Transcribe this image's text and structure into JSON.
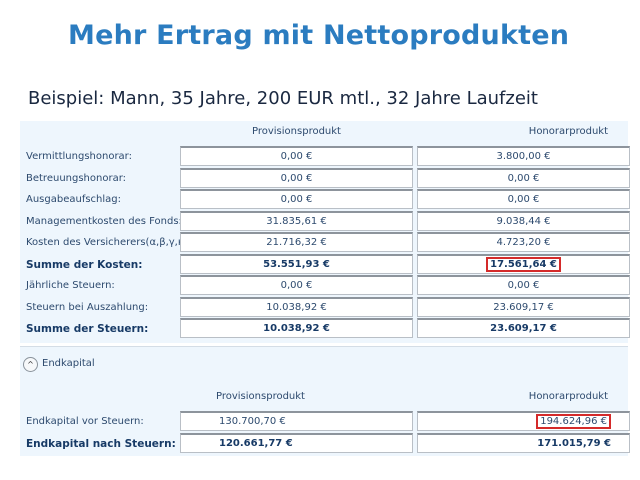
{
  "title": "Mehr Ertrag mit Nettoprodukten",
  "subtitle": "Beispiel: Mann, 35 Jahre, 200 EUR mtl., 32 Jahre Laufzeit",
  "costs": {
    "col_headers": [
      "Provisionsprodukt",
      "Honorarprodukt"
    ],
    "rows": [
      {
        "label": "Vermittlungshonorar:",
        "prov": "0,00 €",
        "hon": "3.800,00 €"
      },
      {
        "label": "Betreuungshonorar:",
        "prov": "0,00 €",
        "hon": "0,00 €"
      },
      {
        "label": "Ausgabeaufschlag:",
        "prov": "0,00 €",
        "hon": "0,00 €"
      },
      {
        "label": "Managementkosten des Fonds:",
        "prov": "31.835,61 €",
        "hon": "9.038,44 €"
      },
      {
        "label": "Kosten des Versicherers(α,β,γ,κ):",
        "prov": "21.716,32 €",
        "hon": "4.723,20 €"
      },
      {
        "label": "Summe der Kosten:",
        "prov": "53.551,93 €",
        "hon": "17.561,64 €",
        "bold": true,
        "highlight_hon": true
      },
      {
        "label": "Jährliche Steuern:",
        "prov": "0,00 €",
        "hon": "0,00 €"
      },
      {
        "label": "Steuern bei Auszahlung:",
        "prov": "10.038,92 €",
        "hon": "23.609,17 €"
      },
      {
        "label": "Summe der Steuern:",
        "prov": "10.038,92 €",
        "hon": "23.609,17 €",
        "bold": true
      }
    ]
  },
  "endkapital": {
    "section_label": "Endkapital",
    "toggle_icon": "chevron-up-circle-icon",
    "col_headers": [
      "Provisionsprodukt",
      "Honorarprodukt"
    ],
    "rows": [
      {
        "label": "Endkapital vor Steuern:",
        "prov": "130.700,70 €",
        "hon": "194.624,96 €",
        "highlight_hon": true
      },
      {
        "label": "Endkapital nach Steuern:",
        "prov": "120.661,77 €",
        "hon": "171.015,79 €",
        "bold": true
      }
    ]
  },
  "colors": {
    "title": "#2b7cc0",
    "highlight": "#d42a2a",
    "panel": "#eef6fd"
  }
}
